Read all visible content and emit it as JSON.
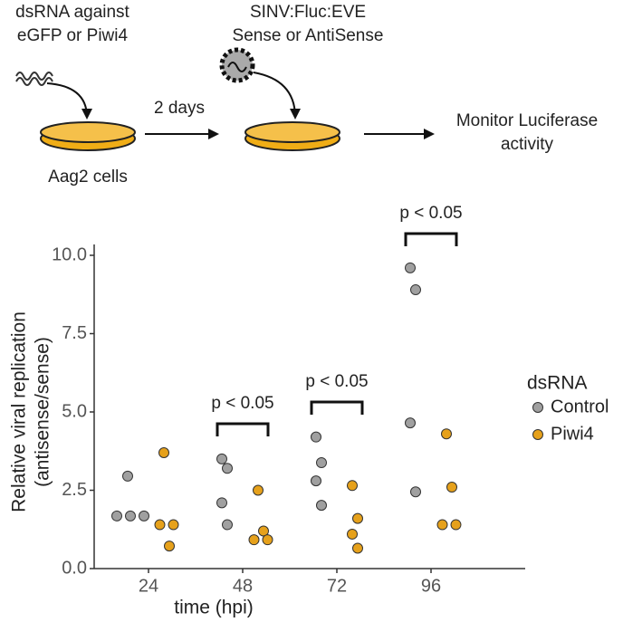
{
  "schematic": {
    "step1": [
      "dsRNA against",
      "eGFP or Piwi4"
    ],
    "step2": [
      "SINV:Fluc:EVE",
      "Sense or AntiSense"
    ],
    "arrow_label": "2 days",
    "cells": "Aag2 cells",
    "step3": [
      "Monitor Luciferase",
      "activity"
    ]
  },
  "chart_data": {
    "type": "scatter",
    "x_label": "time (hpi)",
    "y_label": [
      "Relative viral replication",
      "(antisense/sense)"
    ],
    "categories": [
      "24",
      "48",
      "72",
      "96"
    ],
    "legend_title": "dsRNA",
    "legend": "right",
    "series": [
      {
        "name": "Control",
        "color": "#a0a0a0",
        "values": [
          [
            2.95,
            1.68,
            1.68,
            1.68
          ],
          [
            3.5,
            3.2,
            2.1,
            1.4
          ],
          [
            4.2,
            3.38,
            2.8,
            2.02
          ],
          [
            9.6,
            8.9,
            4.65,
            2.45
          ]
        ]
      },
      {
        "name": "Piwi4",
        "color": "#e6a11b",
        "values": [
          [
            3.7,
            1.4,
            1.4,
            0.72
          ],
          [
            2.5,
            1.2,
            0.92,
            0.92
          ],
          [
            2.65,
            1.6,
            1.1,
            0.65
          ],
          [
            4.3,
            2.6,
            1.4,
            1.4
          ]
        ]
      }
    ],
    "ylim": [
      0,
      10.4
    ],
    "yticks": [
      {
        "value": 0,
        "label": "0.0"
      },
      2.5,
      {
        "value": 5,
        "label": "5.0"
      },
      7.5,
      {
        "value": 10,
        "label": "10.0"
      }
    ],
    "annotations": [
      "p < 0.05",
      "p < 0.05",
      "p < 0.05"
    ]
  }
}
